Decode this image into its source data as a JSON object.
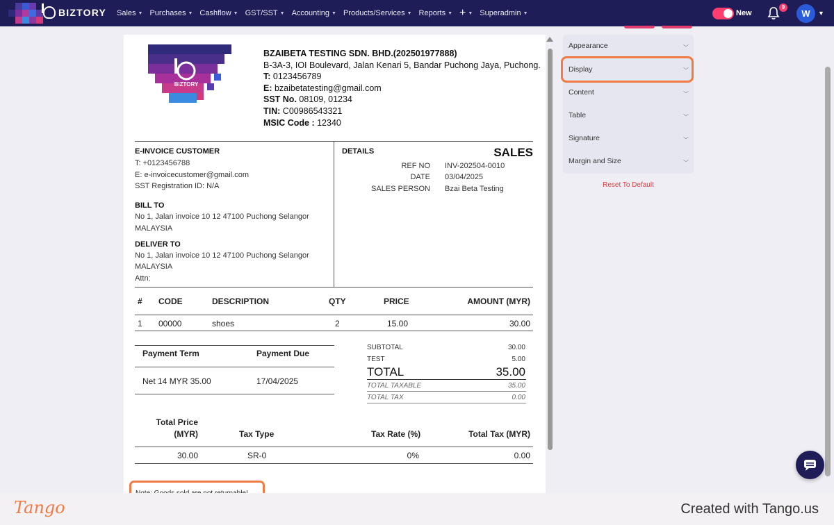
{
  "nav": {
    "brand": "BIZTORY",
    "menu": [
      {
        "label": "Sales"
      },
      {
        "label": "Purchases"
      },
      {
        "label": "Cashflow"
      },
      {
        "label": "GST/SST"
      },
      {
        "label": "Accounting"
      },
      {
        "label": "Products/Services"
      },
      {
        "label": "Reports"
      },
      {
        "label": "Superadmin"
      }
    ],
    "new_label": "New",
    "notifications": "9",
    "avatar": "W",
    "accent_color": "#ff3d6e",
    "bar_color": "#1e1d57"
  },
  "doc": {
    "logo_text": "BIZTORY",
    "company": {
      "name": "BZAIBETA TESTING SDN. BHD.(202501977888)",
      "address": "B-3A-3, IOI Boulevard, Jalan Kenari 5, Bandar Puchong Jaya, Puchong.",
      "t_label": "T:",
      "t_value": "0123456789",
      "e_label": "E:",
      "e_value": "bzaibetatesting@gmail.com",
      "sst_label": "SST No.",
      "sst_value": "08109, 01234",
      "tin_label": "TIN:",
      "tin_value": "C00986543321",
      "msic_label": "MSIC Code :",
      "msic_value": "12340"
    },
    "customer": {
      "heading": "E-INVOICE CUSTOMER",
      "phone": "T: +0123456788",
      "email": "E: e-invoicecustomer@gmail.com",
      "sst": "SST Registration ID: N/A",
      "bill_to_heading": "BILL TO",
      "bill_to_line1": "No 1, Jalan invoice 10 12 47100 Puchong Selangor",
      "bill_to_line2": "MALAYSIA",
      "deliver_to_heading": "DELIVER TO",
      "deliver_to_line1": "No 1, Jalan invoice 10 12 47100 Puchong Selangor",
      "deliver_to_line2": "MALAYSIA",
      "attn": "Attn:"
    },
    "details": {
      "heading": "DETAILS",
      "title": "SALES",
      "ref_label": "REF NO",
      "ref_value": "INV-202504-0010",
      "date_label": "DATE",
      "date_value": "03/04/2025",
      "person_label": "SALES PERSON",
      "person_value": "Bzai Beta Testing"
    },
    "items_table": {
      "headers": [
        "#",
        "CODE",
        "DESCRIPTION",
        "QTY",
        "PRICE",
        "AMOUNT (MYR)"
      ],
      "rows": [
        [
          "1",
          "00000",
          "shoes",
          "2",
          "15.00",
          "30.00"
        ]
      ]
    },
    "payment": {
      "term_header": "Payment Term",
      "due_header": "Payment Due",
      "term_value": "Net 14 MYR 35.00",
      "due_value": "17/04/2025"
    },
    "summary": {
      "subtotal_label": "SUBTOTAL",
      "subtotal_value": "30.00",
      "test_label": "TEST",
      "test_value": "5.00",
      "total_label": "TOTAL",
      "total_value": "35.00",
      "taxable_label": "TOTAL TAXABLE",
      "taxable_value": "35.00",
      "tax_label": "TOTAL TAX",
      "tax_value": "0.00"
    },
    "tax_table": {
      "h1a": "Total Price",
      "h1b": "(MYR)",
      "h2": "Tax Type",
      "h3": "Tax Rate (%)",
      "h4": "Total Tax (MYR)",
      "row": [
        "30.00",
        "SR-0",
        "0%",
        "0.00"
      ]
    },
    "note": "Note: Goods sold are not returnable!"
  },
  "panel": {
    "sections": [
      {
        "label": "Appearance"
      },
      {
        "label": "Display"
      },
      {
        "label": "Content"
      },
      {
        "label": "Table"
      },
      {
        "label": "Signature"
      },
      {
        "label": "Margin and Size"
      }
    ],
    "reset_label": "Reset To Default",
    "highlight_color": "#f07a43"
  },
  "footer": {
    "logo": "Tango",
    "credit": "Created with Tango.us"
  }
}
